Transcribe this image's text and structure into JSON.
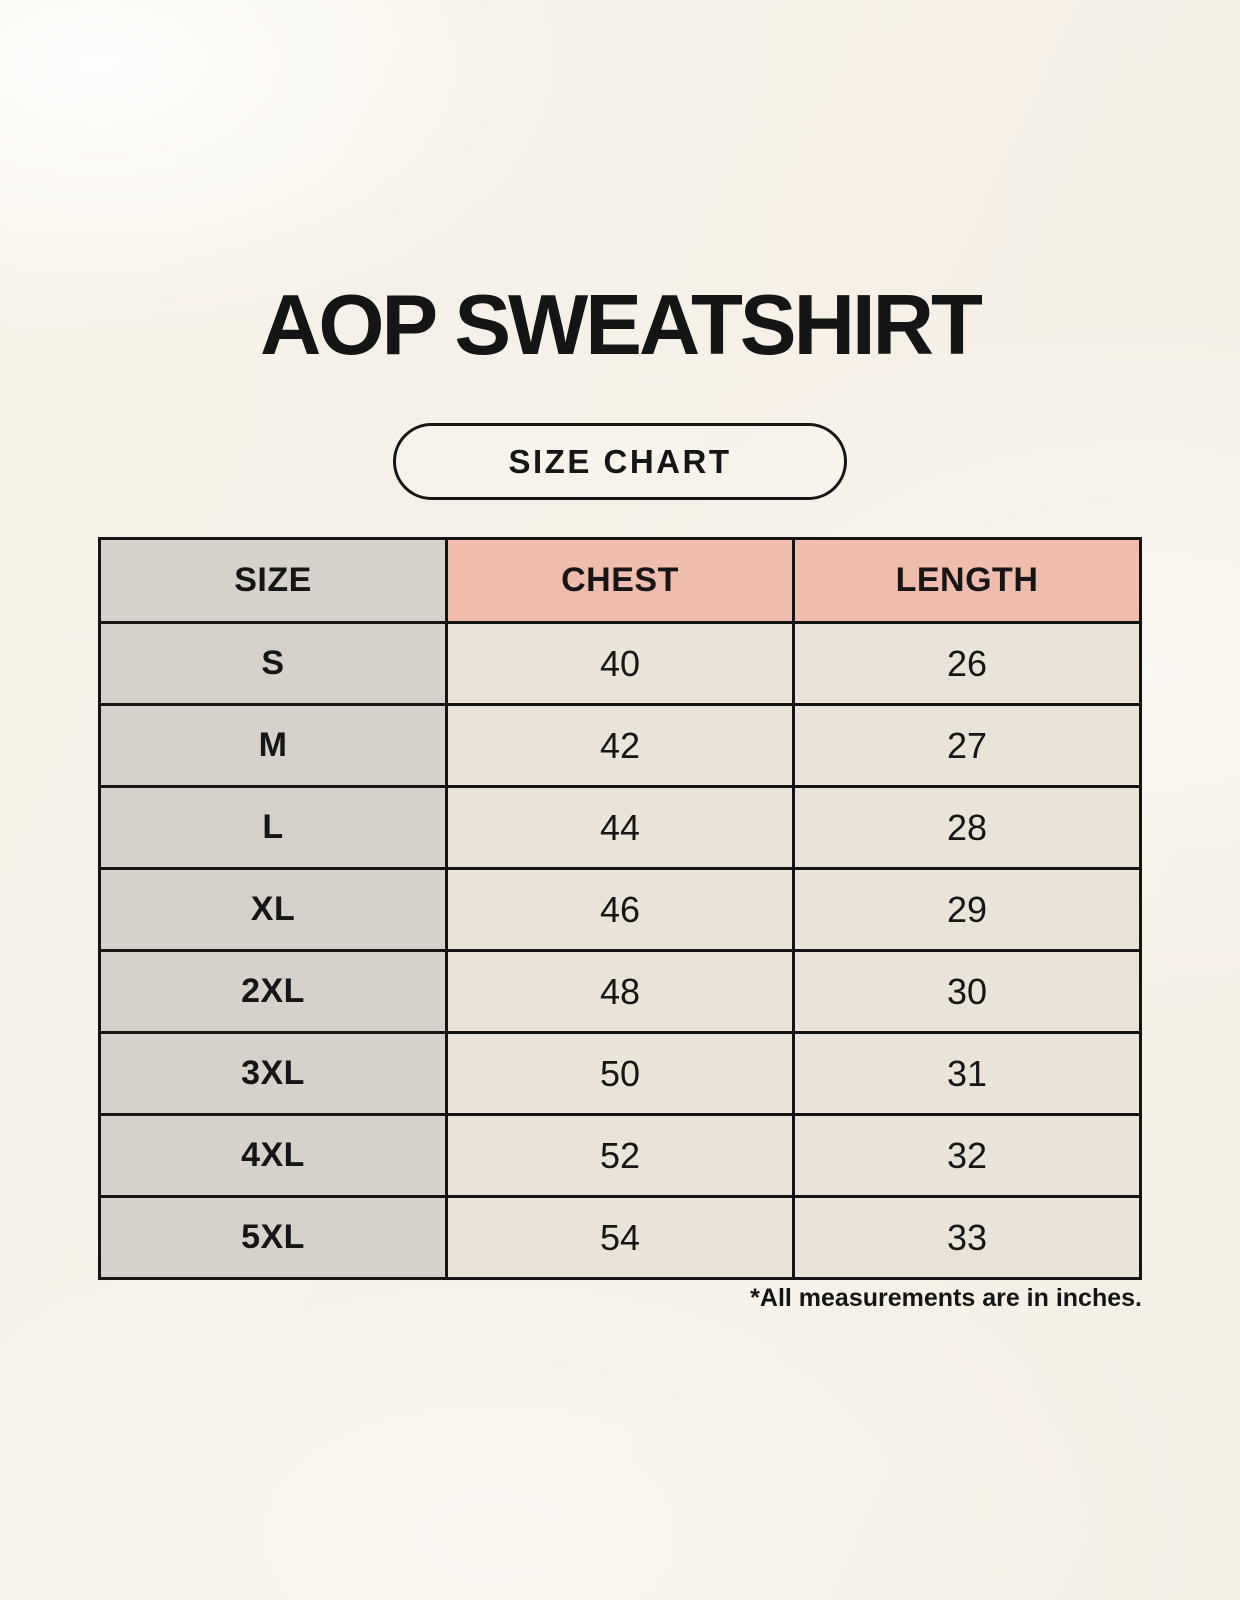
{
  "header": {
    "title": "AOP SWEATSHIRT",
    "size_chart_badge": "SIZE CHART"
  },
  "footnote": "*All measurements are in inches.",
  "colors": {
    "page_background": "#f6f1e8",
    "accent_header_cell": "#f0bcab",
    "size_column_cell": "#d7d1cb",
    "value_cell": "#e9e3d8",
    "border": "#141414",
    "text": "#161616"
  },
  "chart_data": {
    "type": "table",
    "title": "AOP SWEATSHIRT",
    "subtitle": "SIZE CHART",
    "units": "inches",
    "columns": [
      "SIZE",
      "CHEST",
      "LENGTH"
    ],
    "rows": [
      [
        "S",
        40,
        26
      ],
      [
        "M",
        42,
        27
      ],
      [
        "L",
        44,
        28
      ],
      [
        "XL",
        46,
        29
      ],
      [
        "2XL",
        48,
        30
      ],
      [
        "3XL",
        50,
        31
      ],
      [
        "4XL",
        52,
        32
      ],
      [
        "5XL",
        54,
        33
      ]
    ],
    "note": "*All measurements are in inches."
  }
}
